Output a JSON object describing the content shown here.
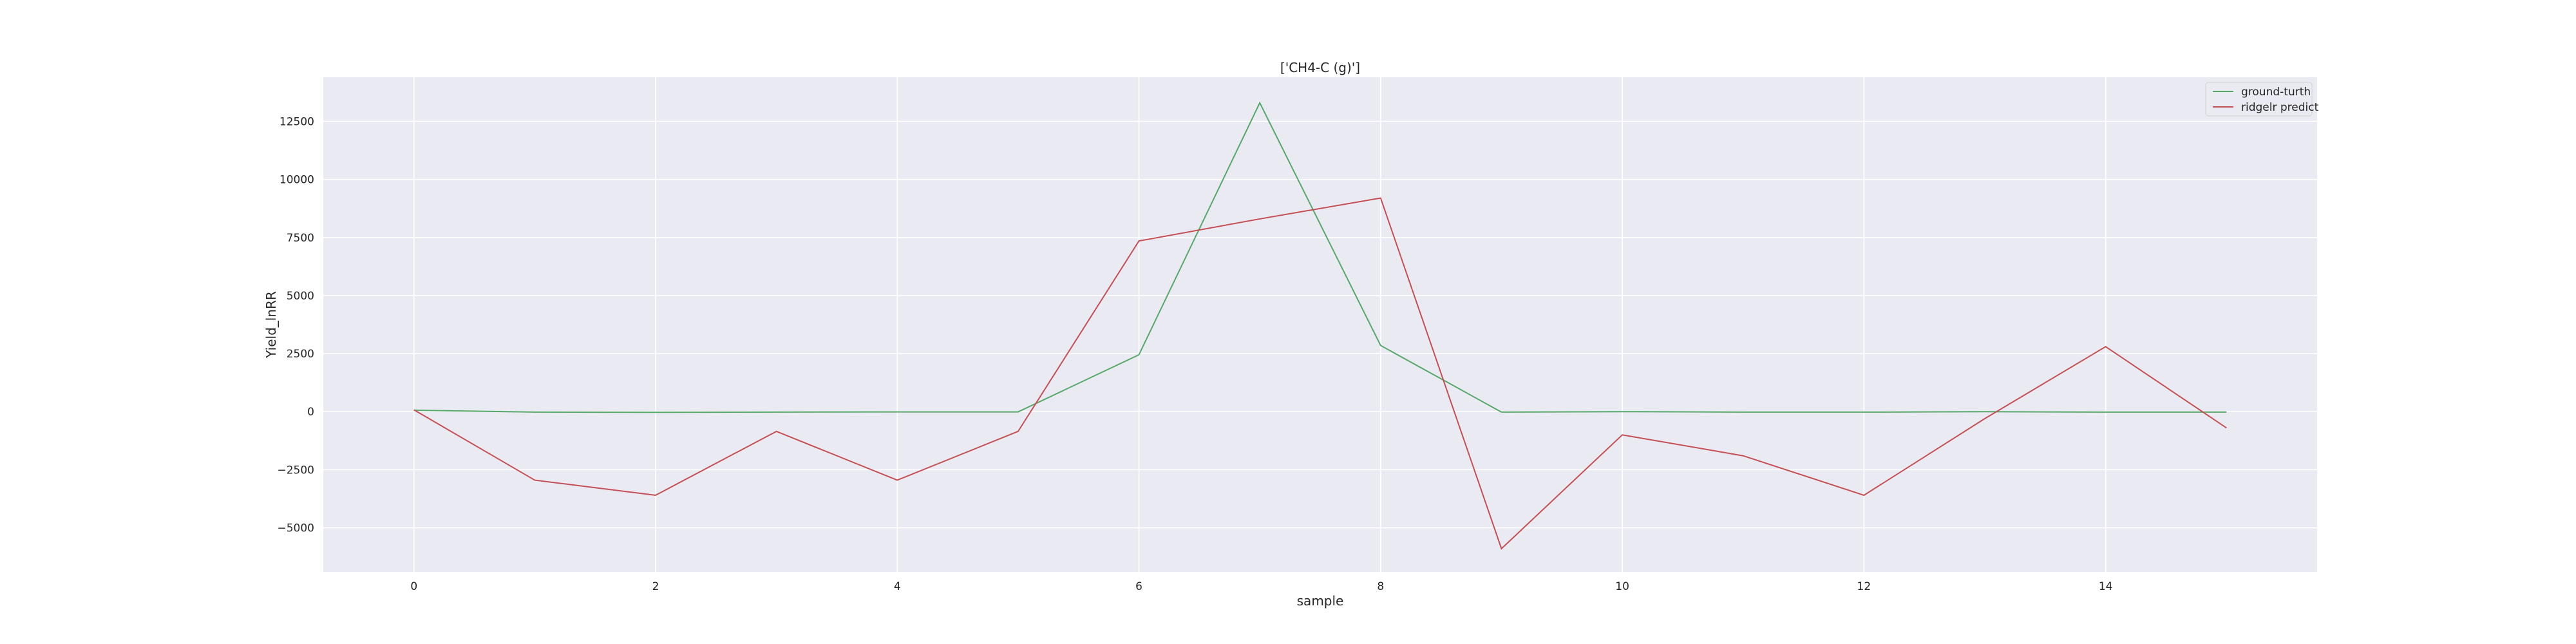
{
  "chart_data": {
    "type": "line",
    "title": "['CH4-C (g)']",
    "xlabel": "sample",
    "ylabel": "Yield_lnRR",
    "xlim": [
      -0.75,
      15.75
    ],
    "ylim": [
      -6900,
      14400
    ],
    "x_ticks": [
      0,
      2,
      4,
      6,
      8,
      10,
      12,
      14
    ],
    "y_ticks": [
      -5000,
      -2500,
      0,
      2500,
      5000,
      7500,
      10000,
      12500
    ],
    "y_tick_labels": [
      "−5000",
      "−2500",
      "0",
      "2500",
      "5000",
      "7500",
      "10000",
      "12500"
    ],
    "grid": true,
    "legend_position": "top-right",
    "x": [
      0,
      1,
      2,
      3,
      4,
      5,
      6,
      7,
      8,
      9,
      10,
      11,
      12,
      13,
      14,
      15
    ],
    "series": [
      {
        "name": "ground-turth",
        "color": "#55a868",
        "values": [
          60,
          -20,
          -30,
          -20,
          -10,
          -10,
          2450,
          13300,
          2850,
          -20,
          0,
          -20,
          -20,
          0,
          -20,
          -20
        ]
      },
      {
        "name": "ridgelr predict",
        "color": "#c44e52",
        "values": [
          80,
          -2950,
          -3600,
          -850,
          -2950,
          -850,
          7350,
          8300,
          9200,
          -5900,
          -1000,
          -1900,
          -3600,
          -300,
          2800,
          -700
        ]
      }
    ]
  }
}
